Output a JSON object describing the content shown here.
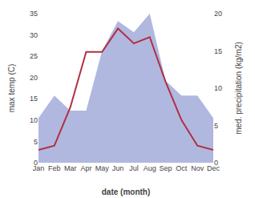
{
  "chart_data": {
    "type": "line",
    "xlabel": "date (month)",
    "ylabel": "max temp (C)",
    "y2label": "med. precipitation (kg/m2)",
    "categories": [
      "Jan",
      "Feb",
      "Mar",
      "Apr",
      "May",
      "Jun",
      "Jul",
      "Aug",
      "Sep",
      "Oct",
      "Nov",
      "Dec"
    ],
    "series": [
      {
        "type": "area",
        "color": "#b0b8e0",
        "axis": "y2",
        "values": [
          6,
          9,
          7,
          7,
          15,
          19,
          17.5,
          20,
          11,
          9,
          9,
          6
        ]
      },
      {
        "type": "line",
        "color": "#b03040",
        "values": [
          3,
          4,
          13,
          26,
          26,
          31.5,
          28,
          29.5,
          19,
          10,
          4,
          3
        ]
      }
    ],
    "ylim": [
      0,
      35
    ],
    "yticks": [
      0,
      5,
      10,
      15,
      20,
      25,
      30,
      35
    ],
    "y2lim": [
      0,
      20
    ],
    "y2ticks": [
      0,
      5,
      10,
      15,
      20
    ],
    "grid": false
  }
}
